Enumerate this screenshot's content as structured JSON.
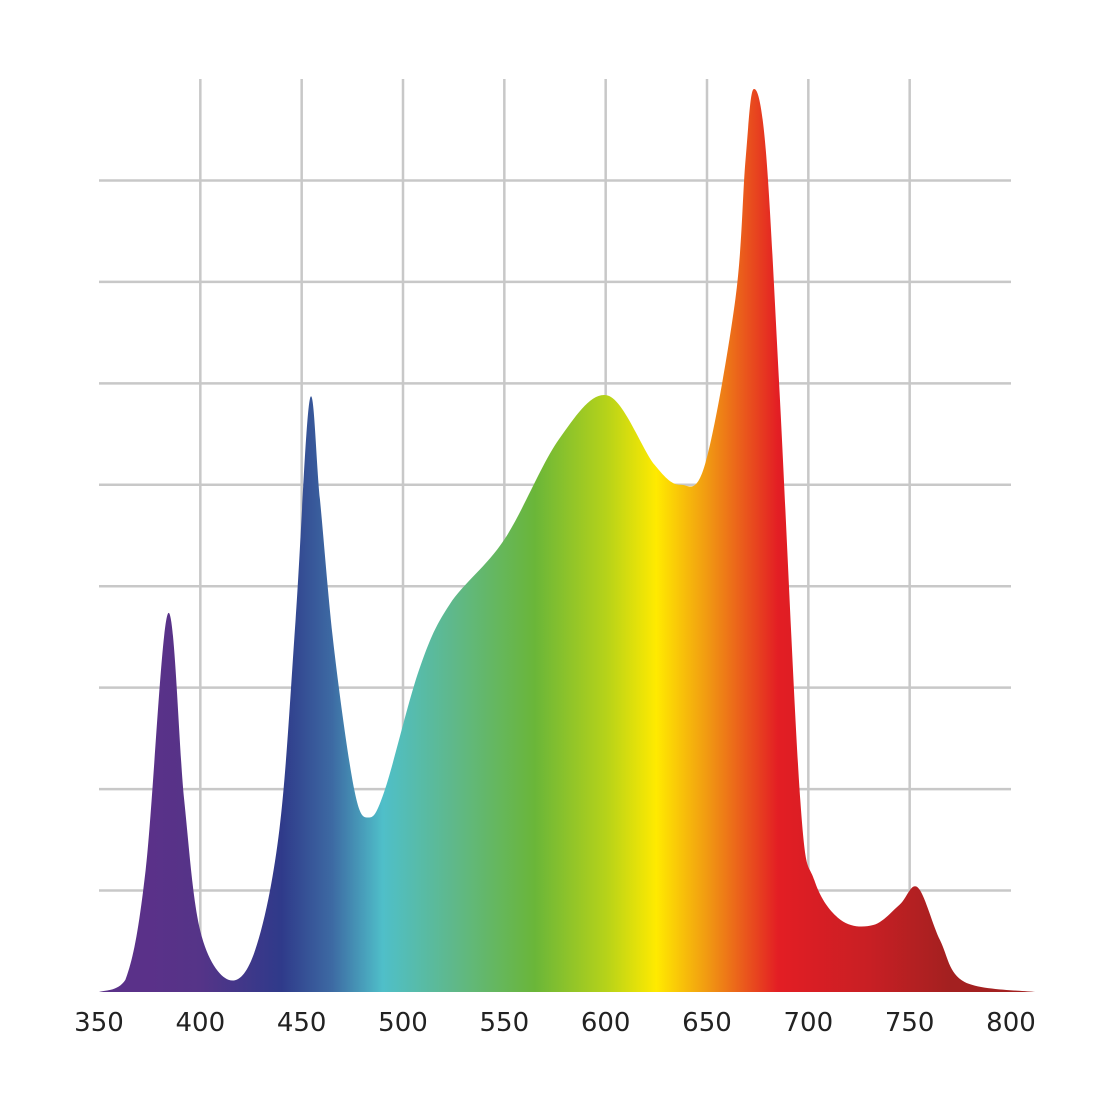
{
  "chart_data": {
    "type": "area",
    "title": "",
    "xlabel": "",
    "ylabel": "",
    "xlim": [
      350,
      800
    ],
    "ylim": [
      0,
      9
    ],
    "grid": true,
    "x_ticks": [
      "350",
      "400",
      "450",
      "500",
      "550",
      "600",
      "650",
      "700",
      "750",
      "800"
    ],
    "x_tick_values": [
      350,
      400,
      450,
      500,
      550,
      600,
      650,
      700,
      750,
      800
    ],
    "y_grid_values": [
      1,
      2,
      3,
      4,
      5,
      6,
      7,
      8
    ],
    "x_grid_values": [
      400,
      450,
      500,
      550,
      600,
      650,
      700,
      750
    ],
    "grid_color": "#c8c8c8",
    "series": [
      {
        "x": [
          350,
          363,
          373,
          384,
          392,
          400,
          414,
          427,
          439,
          447,
          454,
          459,
          466,
          476,
          483,
          491,
          508,
          523,
          550,
          577,
          601,
          624,
          637,
          649,
          664,
          669,
          673,
          679,
          686,
          696,
          703,
          716,
          732,
          745,
          754,
          765,
          777,
          812
        ],
        "y": [
          0,
          0.12,
          1.2,
          3.73,
          1.9,
          0.6,
          0.12,
          0.41,
          1.6,
          3.67,
          5.84,
          4.86,
          3.38,
          1.99,
          1.72,
          1.99,
          3.18,
          3.82,
          4.46,
          5.45,
          5.88,
          5.2,
          5.0,
          5.2,
          6.83,
          8.2,
          8.9,
          8.3,
          5.84,
          1.9,
          1.1,
          0.71,
          0.66,
          0.86,
          1.03,
          0.51,
          0.1,
          0
        ]
      }
    ],
    "fill_gradient": [
      {
        "nm": 375,
        "color": "#5a3189"
      },
      {
        "nm": 400,
        "color": "#553488"
      },
      {
        "nm": 440,
        "color": "#2f3a8a"
      },
      {
        "nm": 465,
        "color": "#3d6aa3"
      },
      {
        "nm": 490,
        "color": "#4fbfc9"
      },
      {
        "nm": 525,
        "color": "#5fb88a"
      },
      {
        "nm": 565,
        "color": "#6ab639"
      },
      {
        "nm": 600,
        "color": "#b5d21a"
      },
      {
        "nm": 625,
        "color": "#ffea00"
      },
      {
        "nm": 650,
        "color": "#f19a12"
      },
      {
        "nm": 668,
        "color": "#ea5a1c"
      },
      {
        "nm": 685,
        "color": "#e31e24"
      },
      {
        "nm": 730,
        "color": "#c81f24"
      },
      {
        "nm": 770,
        "color": "#a32020"
      }
    ]
  }
}
